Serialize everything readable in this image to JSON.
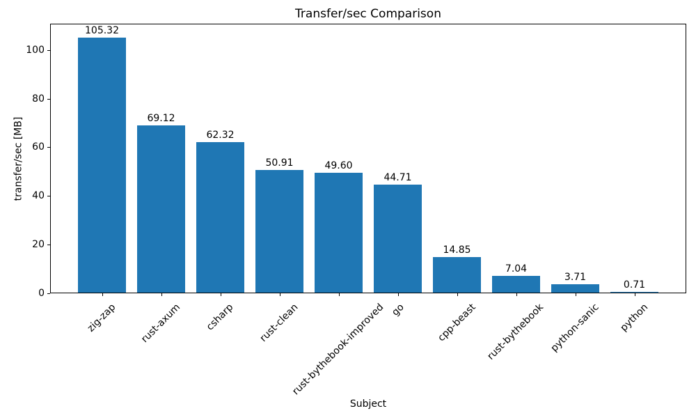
{
  "figure": {
    "title": "Transfer/sec Comparison",
    "xlabel": "Subject",
    "ylabel": "transfer/sec [MB]"
  },
  "colors": {
    "bar": "#1f77b4",
    "text": "#000000",
    "spine": "#000000",
    "background": "#ffffff"
  },
  "chart_data": {
    "type": "bar",
    "title": "Transfer/sec Comparison",
    "xlabel": "Subject",
    "ylabel": "transfer/sec [MB]",
    "categories": [
      "zig-zap",
      "rust-axum",
      "csharp",
      "rust-clean",
      "rust-bythebook-improved",
      "go",
      "cpp-beast",
      "rust-bythebook",
      "python-sanic",
      "python"
    ],
    "values": [
      105.32,
      69.12,
      62.32,
      50.91,
      49.6,
      44.71,
      14.85,
      7.04,
      3.71,
      0.71
    ],
    "value_labels": [
      "105.32",
      "69.12",
      "62.32",
      "50.91",
      "49.60",
      "44.71",
      "14.85",
      "7.04",
      "3.71",
      "0.71"
    ],
    "yticks": [
      0,
      20,
      40,
      60,
      80,
      100
    ],
    "ylim": [
      0,
      111
    ],
    "xtick_rotation": 45,
    "grid": false,
    "legend": "none"
  }
}
